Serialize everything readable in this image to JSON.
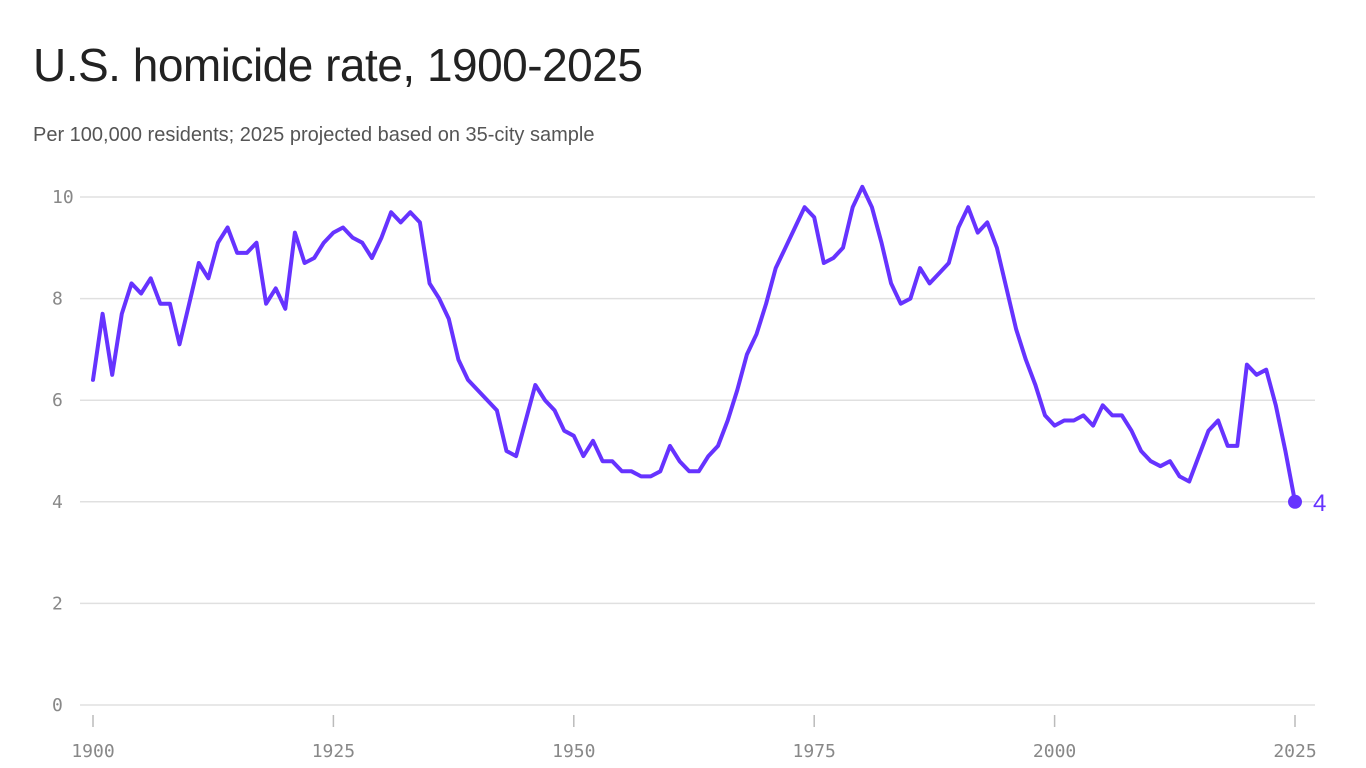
{
  "title": "U.S. homicide rate, 1900-2025",
  "subtitle": "Per 100,000 residents; 2025 projected based on 35-city sample",
  "colors": {
    "line": "#6633ff",
    "grid": "#e0e0e0",
    "tick": "#888888"
  },
  "chart_data": {
    "type": "line",
    "title": "U.S. homicide rate, 1900-2025",
    "subtitle": "Per 100,000 residents; 2025 projected based on 35-city sample",
    "xlabel": "",
    "ylabel": "",
    "xlim": [
      1900,
      2025
    ],
    "ylim": [
      0,
      10
    ],
    "xticks": [
      1900,
      1925,
      1950,
      1975,
      2000,
      2025
    ],
    "yticks": [
      0,
      2,
      4,
      6,
      8,
      10
    ],
    "grid": "horizontal",
    "x_start": 1900,
    "values": [
      6.4,
      7.7,
      6.5,
      7.7,
      8.3,
      8.1,
      8.4,
      7.9,
      7.9,
      7.1,
      7.9,
      8.7,
      8.4,
      9.1,
      9.4,
      8.9,
      8.9,
      9.1,
      7.9,
      8.2,
      7.8,
      9.3,
      8.7,
      8.8,
      9.1,
      9.3,
      9.4,
      9.2,
      9.1,
      8.8,
      9.2,
      9.7,
      9.5,
      9.7,
      9.5,
      8.3,
      8.0,
      7.6,
      6.8,
      6.4,
      6.2,
      6.0,
      5.8,
      5.0,
      4.9,
      5.6,
      6.3,
      6.0,
      5.8,
      5.4,
      5.3,
      4.9,
      5.2,
      4.8,
      4.8,
      4.6,
      4.6,
      4.5,
      4.5,
      4.6,
      5.1,
      4.8,
      4.6,
      4.6,
      4.9,
      5.1,
      5.6,
      6.2,
      6.9,
      7.3,
      7.9,
      8.6,
      9.0,
      9.4,
      9.8,
      9.6,
      8.7,
      8.8,
      9.0,
      9.8,
      10.2,
      9.8,
      9.1,
      8.3,
      7.9,
      8.0,
      8.6,
      8.3,
      8.5,
      8.7,
      9.4,
      9.8,
      9.3,
      9.5,
      9.0,
      8.2,
      7.4,
      6.8,
      6.3,
      5.7,
      5.5,
      5.6,
      5.6,
      5.7,
      5.5,
      5.9,
      5.7,
      5.7,
      5.4,
      5.0,
      4.8,
      4.7,
      4.8,
      4.5,
      4.4,
      4.9,
      5.4,
      5.6,
      5.1,
      5.1,
      6.7,
      6.5,
      6.6,
      5.9,
      5.0,
      4.0
    ],
    "annotations": [
      {
        "x": 2025,
        "y": 4,
        "label": "4"
      }
    ]
  }
}
